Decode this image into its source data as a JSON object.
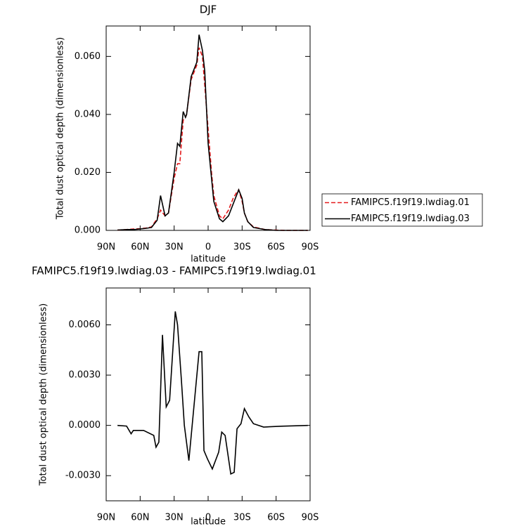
{
  "chart_data": [
    {
      "type": "line",
      "title": "DJF",
      "xlabel": "latitude",
      "ylabel": "Total dust optical depth (dimensionless)",
      "x": [
        80,
        72,
        65,
        60,
        55,
        50,
        45,
        42,
        38,
        35,
        30,
        27,
        25,
        22,
        20,
        19,
        15,
        12,
        10,
        8,
        5,
        3,
        0,
        -3,
        -5,
        -10,
        -13,
        -18,
        -22,
        -25,
        -27,
        -30,
        -32,
        -35,
        -40,
        -50,
        -60,
        -70,
        -80,
        -88
      ],
      "series": [
        {
          "name": "FAMIPC5.f19f19.lwdiag.01",
          "color": "#e41a1c",
          "dash": "dashed",
          "values": [
            0.0001,
            0.0003,
            0.0005,
            0.0006,
            0.0008,
            0.0012,
            0.004,
            0.007,
            0.005,
            0.006,
            0.018,
            0.023,
            0.023,
            0.038,
            0.039,
            0.04,
            0.052,
            0.055,
            0.057,
            0.063,
            0.06,
            0.05,
            0.035,
            0.02,
            0.012,
            0.005,
            0.004,
            0.007,
            0.011,
            0.013,
            0.014,
            0.01,
            0.006,
            0.003,
            0.0012,
            0.0003,
            0.0001,
            0,
            0,
            0
          ]
        },
        {
          "name": "FAMIPC5.f19f19.lwdiag.03",
          "color": "#000000",
          "dash": "solid",
          "values": [
            0.0001,
            0.0003,
            0.0003,
            0.0005,
            0.0007,
            0.001,
            0.0035,
            0.012,
            0.005,
            0.006,
            0.02,
            0.03,
            0.029,
            0.041,
            0.039,
            0.04,
            0.053,
            0.056,
            0.058,
            0.0675,
            0.062,
            0.055,
            0.03,
            0.018,
            0.01,
            0.004,
            0.003,
            0.005,
            0.009,
            0.012,
            0.014,
            0.011,
            0.006,
            0.003,
            0.001,
            0.0003,
            0,
            0,
            0,
            0
          ]
        }
      ],
      "xlim": [
        90,
        -90
      ],
      "ylim": [
        0,
        0.0705
      ],
      "xticks": [
        {
          "value": 90,
          "label": "90N"
        },
        {
          "value": 60,
          "label": "60N"
        },
        {
          "value": 30,
          "label": "30N"
        },
        0,
        {
          "value": -30,
          "label": "30S"
        },
        {
          "value": -60,
          "label": "60S"
        },
        {
          "value": -90,
          "label": "90S"
        }
      ],
      "yticks": [
        {
          "value": 0,
          "label": "0.000"
        },
        {
          "value": 0.02,
          "label": "0.020"
        },
        {
          "value": 0.04,
          "label": "0.040"
        },
        {
          "value": 0.06,
          "label": "0.060"
        }
      ],
      "legend": "right"
    },
    {
      "type": "line",
      "title": "FAMIPC5.f19f19.lwdiag.03 - FAMIPC5.f19f19.lwdiag.01",
      "xlabel": "latitude",
      "ylabel": "Total dust optical depth (dimensionless)",
      "x": [
        80,
        72,
        68,
        66,
        57,
        48,
        46,
        43.5,
        40.3,
        37,
        34,
        29,
        27,
        23.6,
        21,
        17,
        8,
        5.6,
        3.7,
        0.6,
        -3.7,
        -9.3,
        -12,
        -15,
        -20,
        -23,
        -25.5,
        -29,
        -32,
        -36,
        -40,
        -49,
        -64.5,
        -88
      ],
      "values": [
        0,
        -4e-05,
        -0.0005,
        -0.0003,
        -0.0003,
        -0.0006,
        -0.0013,
        -0.001,
        0.0054,
        0.0011,
        0.0015,
        0.0068,
        0.006,
        0.0027,
        0,
        -0.0021,
        0.0044,
        0.0044,
        -0.0015,
        -0.002,
        -0.0026,
        -0.0016,
        -0.0004,
        -0.0006,
        -0.0029,
        -0.0028,
        -0.0002,
        0.0001,
        0.001,
        0.0005,
        0.0001,
        -0.0001,
        -5e-05,
        0
      ],
      "color": "#000000",
      "xlim": [
        90,
        -90
      ],
      "ylim": [
        -0.0045,
        0.0082
      ],
      "xticks": [
        {
          "value": 90,
          "label": "90N"
        },
        {
          "value": 60,
          "label": "60N"
        },
        {
          "value": 30,
          "label": "30N"
        },
        0,
        {
          "value": -30,
          "label": "30S"
        },
        {
          "value": -60,
          "label": "60S"
        },
        {
          "value": -90,
          "label": "90S"
        }
      ],
      "yticks": [
        {
          "value": -0.003,
          "label": "-0.0030"
        },
        {
          "value": 0,
          "label": "0.0000"
        },
        {
          "value": 0.003,
          "label": "0.0030"
        },
        {
          "value": 0.006,
          "label": "0.0060"
        }
      ]
    }
  ]
}
